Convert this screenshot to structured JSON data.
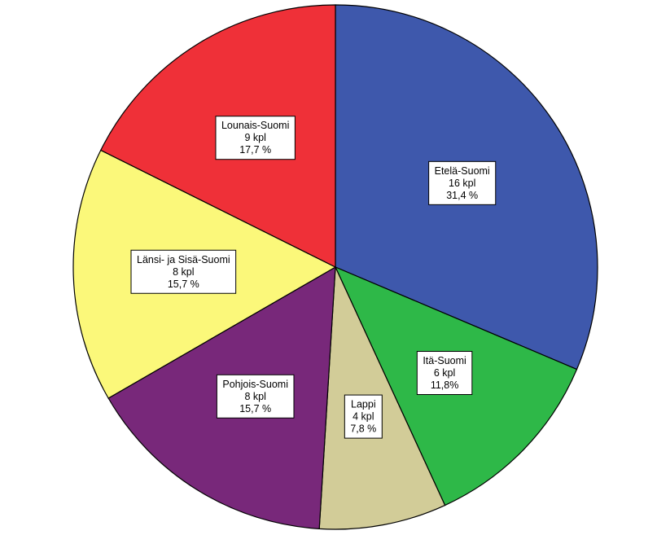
{
  "chart_data": {
    "type": "pie",
    "title": "",
    "start_angle_deg": 0,
    "direction": "clockwise",
    "slices": [
      {
        "name": "Etelä-Suomi",
        "count_label": "16 kpl",
        "percent_label": "31,4 %",
        "value": 16,
        "percent": 31.4,
        "color": "#3e58ac"
      },
      {
        "name": "Itä-Suomi",
        "count_label": "6 kpl",
        "percent_label": "11,8%",
        "value": 6,
        "percent": 11.8,
        "color": "#2eb848"
      },
      {
        "name": "Lappi",
        "count_label": "4 kpl",
        "percent_label": "7,8 %",
        "value": 4,
        "percent": 7.8,
        "color": "#d2cc98"
      },
      {
        "name": "Pohjois-Suomi",
        "count_label": "8 kpl",
        "percent_label": "15,7 %",
        "value": 8,
        "percent": 15.7,
        "color": "#78287a"
      },
      {
        "name": "Länsi- ja Sisä-Suomi",
        "count_label": "8 kpl",
        "percent_label": "15,7 %",
        "value": 8,
        "percent": 15.7,
        "color": "#fbf87a"
      },
      {
        "name": "Lounais-Suomi",
        "count_label": "9 kpl",
        "percent_label": "17,7 %",
        "value": 9,
        "percent": 17.7,
        "color": "#ef3038"
      }
    ]
  }
}
